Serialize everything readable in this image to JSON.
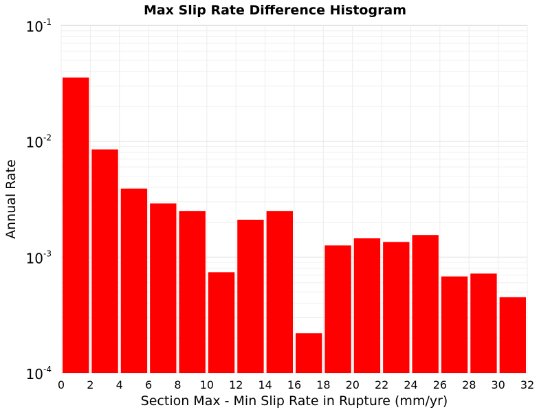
{
  "chart_data": {
    "type": "bar",
    "title": "Max Slip Rate Difference Histogram",
    "xlabel": "Section Max - Min Slip Rate in Rupture (mm/yr)",
    "ylabel": "Annual Rate",
    "y_scale": "log",
    "xlim": [
      0,
      32
    ],
    "ylim": [
      0.0001,
      0.1
    ],
    "x_ticks": [
      "0",
      "2",
      "4",
      "6",
      "8",
      "10",
      "12",
      "14",
      "16",
      "18",
      "20",
      "22",
      "24",
      "26",
      "28",
      "30",
      "32"
    ],
    "y_ticks": [
      {
        "base": "10",
        "exp": "-4"
      },
      {
        "base": "10",
        "exp": "-3"
      },
      {
        "base": "10",
        "exp": "-2"
      },
      {
        "base": "10",
        "exp": "-1"
      }
    ],
    "grid": true,
    "bar_width": 2,
    "bar_color": "#ff0000",
    "bars": [
      {
        "x": 1,
        "value": 0.0355
      },
      {
        "x": 3,
        "value": 0.0085
      },
      {
        "x": 5,
        "value": 0.0039
      },
      {
        "x": 7,
        "value": 0.0029
      },
      {
        "x": 9,
        "value": 0.0025
      },
      {
        "x": 11,
        "value": 0.00074
      },
      {
        "x": 13,
        "value": 0.0021
      },
      {
        "x": 15,
        "value": 0.0025
      },
      {
        "x": 17,
        "value": 0.00022
      },
      {
        "x": 19,
        "value": 0.00126
      },
      {
        "x": 21,
        "value": 0.00145
      },
      {
        "x": 23,
        "value": 0.00135
      },
      {
        "x": 25,
        "value": 0.00155
      },
      {
        "x": 27,
        "value": 0.00068
      },
      {
        "x": 29,
        "value": 0.00072
      },
      {
        "x": 31,
        "value": 0.00045
      }
    ]
  }
}
